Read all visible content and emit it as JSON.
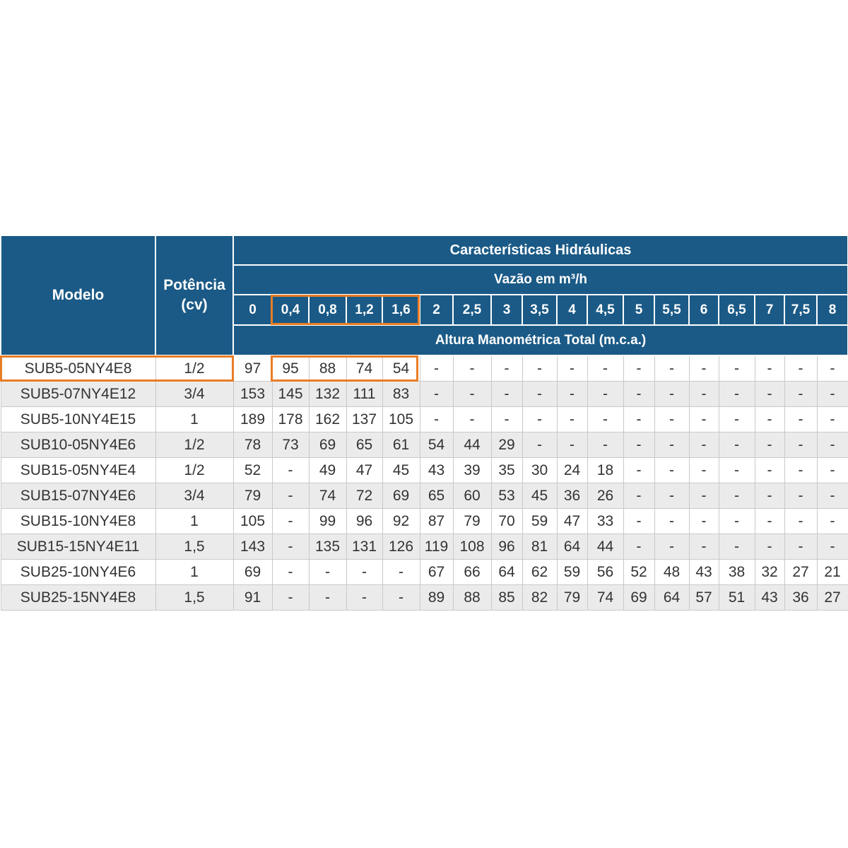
{
  "header": {
    "modelo": "Modelo",
    "potencia_line1": "Potência",
    "potencia_line2": "(cv)",
    "group_title": "Características Hidráulicas",
    "flow_title": "Vazão em m³/h",
    "altura_title": "Altura Manométrica Total (m.c.a.)"
  },
  "flows": [
    "0",
    "0,4",
    "0,8",
    "1,2",
    "1,6",
    "2",
    "2,5",
    "3",
    "3,5",
    "4",
    "4,5",
    "5",
    "5,5",
    "6",
    "6,5",
    "7",
    "7,5",
    "8"
  ],
  "rows": [
    {
      "model": "SUB5-05NY4E8",
      "power": "1/2",
      "values": [
        "97",
        "95",
        "88",
        "74",
        "54",
        "-",
        "-",
        "-",
        "-",
        "-",
        "-",
        "-",
        "-",
        "-",
        "-",
        "-",
        "-",
        "-"
      ]
    },
    {
      "model": "SUB5-07NY4E12",
      "power": "3/4",
      "values": [
        "153",
        "145",
        "132",
        "111",
        "83",
        "-",
        "-",
        "-",
        "-",
        "-",
        "-",
        "-",
        "-",
        "-",
        "-",
        "-",
        "-",
        "-"
      ]
    },
    {
      "model": "SUB5-10NY4E15",
      "power": "1",
      "values": [
        "189",
        "178",
        "162",
        "137",
        "105",
        "-",
        "-",
        "-",
        "-",
        "-",
        "-",
        "-",
        "-",
        "-",
        "-",
        "-",
        "-",
        "-"
      ]
    },
    {
      "model": "SUB10-05NY4E6",
      "power": "1/2",
      "values": [
        "78",
        "73",
        "69",
        "65",
        "61",
        "54",
        "44",
        "29",
        "-",
        "-",
        "-",
        "-",
        "-",
        "-",
        "-",
        "-",
        "-",
        "-"
      ]
    },
    {
      "model": "SUB15-05NY4E4",
      "power": "1/2",
      "values": [
        "52",
        "-",
        "49",
        "47",
        "45",
        "43",
        "39",
        "35",
        "30",
        "24",
        "18",
        "-",
        "-",
        "-",
        "-",
        "-",
        "-",
        "-"
      ]
    },
    {
      "model": "SUB15-07NY4E6",
      "power": "3/4",
      "values": [
        "79",
        "-",
        "74",
        "72",
        "69",
        "65",
        "60",
        "53",
        "45",
        "36",
        "26",
        "-",
        "-",
        "-",
        "-",
        "-",
        "-",
        "-"
      ]
    },
    {
      "model": "SUB15-10NY4E8",
      "power": "1",
      "values": [
        "105",
        "-",
        "99",
        "96",
        "92",
        "87",
        "79",
        "70",
        "59",
        "47",
        "33",
        "-",
        "-",
        "-",
        "-",
        "-",
        "-",
        "-"
      ]
    },
    {
      "model": "SUB15-15NY4E11",
      "power": "1,5",
      "values": [
        "143",
        "-",
        "135",
        "131",
        "126",
        "119",
        "108",
        "96",
        "81",
        "64",
        "44",
        "-",
        "-",
        "-",
        "-",
        "-",
        "-",
        "-"
      ]
    },
    {
      "model": "SUB25-10NY4E6",
      "power": "1",
      "values": [
        "69",
        "-",
        "-",
        "-",
        "-",
        "67",
        "66",
        "64",
        "62",
        "59",
        "56",
        "52",
        "48",
        "43",
        "38",
        "32",
        "27",
        "21"
      ]
    },
    {
      "model": "SUB25-15NY4E8",
      "power": "1,5",
      "values": [
        "91",
        "-",
        "-",
        "-",
        "-",
        "89",
        "88",
        "85",
        "82",
        "79",
        "74",
        "69",
        "64",
        "57",
        "51",
        "43",
        "36",
        "27"
      ]
    }
  ],
  "colors": {
    "header_bg": "#1b5a86",
    "highlight": "#e87d26",
    "stripe": "#ebebeb"
  }
}
